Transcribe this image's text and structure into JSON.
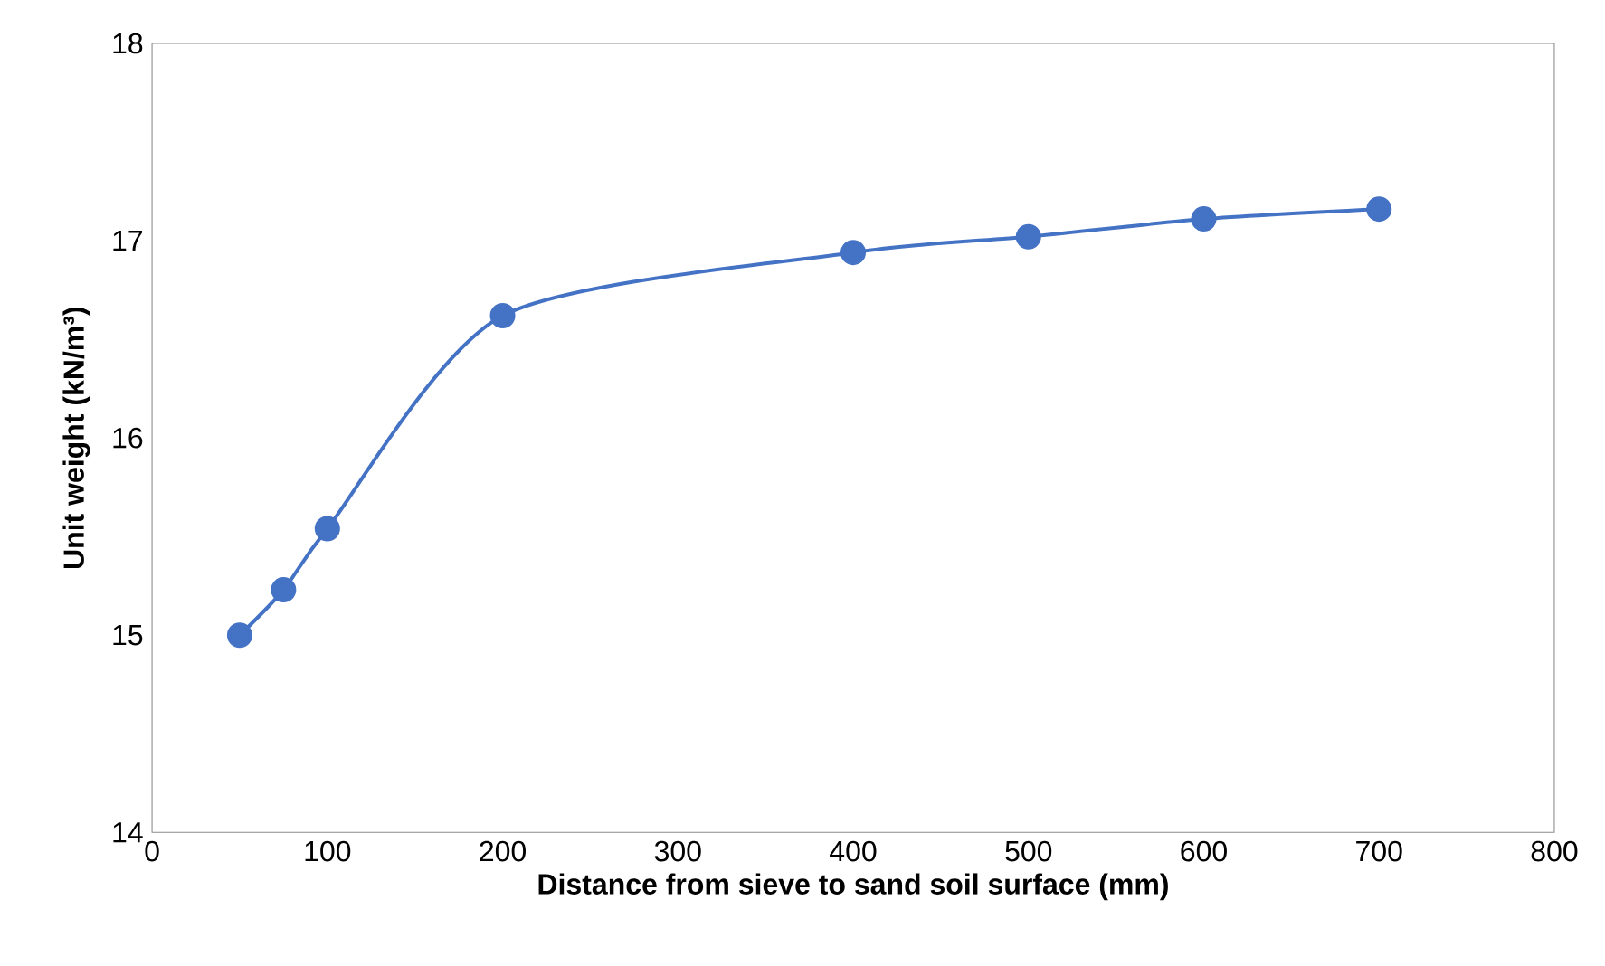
{
  "chart_data": {
    "type": "line",
    "xlabel": "Distance from sieve to sand soil surface (mm)",
    "ylabel": "Unit weight (kN/m³)",
    "x": [
      50,
      75,
      100,
      200,
      400,
      500,
      600,
      700
    ],
    "series": [
      {
        "color": "#4472c4",
        "values": [
          15.0,
          15.23,
          15.54,
          16.62,
          16.94,
          17.02,
          17.11,
          17.16
        ]
      }
    ],
    "xlim": [
      0,
      800
    ],
    "xticks": [
      0,
      100,
      200,
      300,
      400,
      500,
      600,
      700,
      800
    ],
    "ylim": [
      14,
      18
    ],
    "yticks": [
      14,
      15,
      16,
      17,
      18
    ],
    "marker": "circle",
    "line_style": "solid",
    "grid": false
  }
}
